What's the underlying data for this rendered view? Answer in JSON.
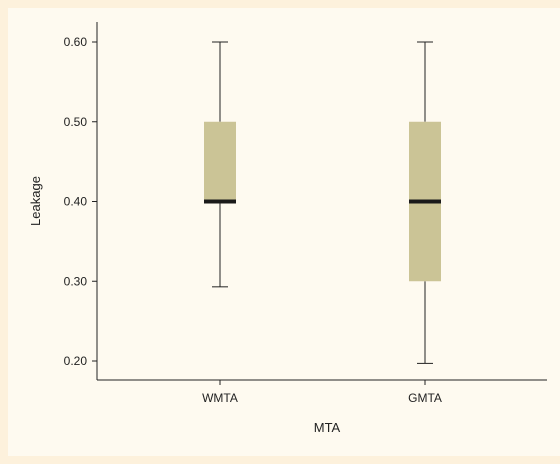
{
  "chart_data": {
    "type": "boxplot",
    "title": "",
    "xlabel": "MTA",
    "ylabel": "Leakage",
    "categories": [
      "WMTA",
      "GMTA"
    ],
    "boxes": [
      {
        "category": "WMTA",
        "min": 0.293,
        "q1": 0.4,
        "median": 0.4,
        "q3": 0.5,
        "max": 0.6
      },
      {
        "category": "GMTA",
        "min": 0.197,
        "q1": 0.3,
        "median": 0.4,
        "q3": 0.5,
        "max": 0.6
      }
    ],
    "yticks": [
      "0.20",
      "0.30",
      "0.40",
      "0.50",
      "0.60"
    ],
    "ytick_values": [
      0.2,
      0.3,
      0.4,
      0.5,
      0.6
    ],
    "ylim": [
      0.18,
      0.62
    ],
    "grid": false,
    "box_color": "#cbc496",
    "median_color": "#1a1a1a"
  }
}
